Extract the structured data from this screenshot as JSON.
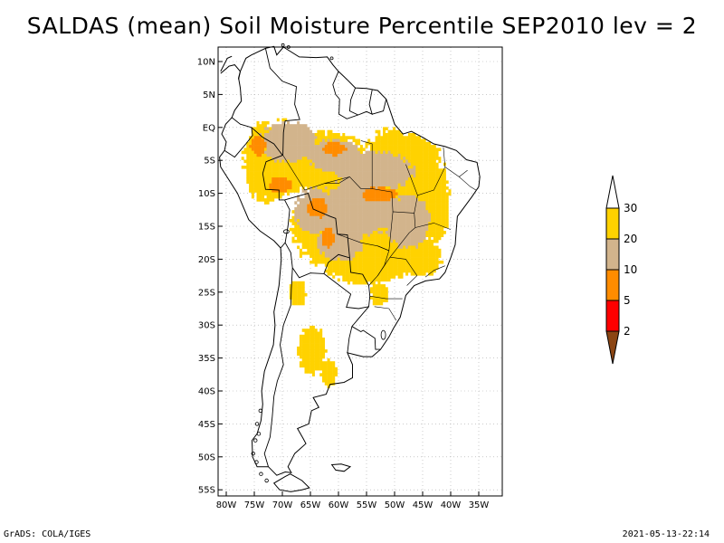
{
  "title": "SALDAS (mean) Soil Moisture Percentile SEP2010 lev = 2",
  "footer": {
    "left": "GrADS: COLA/IGES",
    "right": "2021-05-13-22:14"
  },
  "map": {
    "region": "South America",
    "lat_labels": [
      "10N",
      "5N",
      "EQ",
      "5S",
      "10S",
      "15S",
      "20S",
      "25S",
      "30S",
      "35S",
      "40S",
      "45S",
      "50S",
      "55S"
    ],
    "lon_labels": [
      "80W",
      "75W",
      "70W",
      "65W",
      "60W",
      "55W",
      "50W",
      "45W",
      "40W",
      "35W"
    ],
    "lat_range": [
      10.5,
      -56
    ],
    "lon_range": [
      -81,
      -33
    ]
  },
  "legend": {
    "bins": [
      {
        "label": "30",
        "color": "#ffffff"
      },
      {
        "label": "20",
        "color": "#ffd200"
      },
      {
        "label": "10",
        "color": "#d2b48c"
      },
      {
        "label": "5",
        "color": "#ff8c00"
      },
      {
        "label": "2",
        "color": "#ff0000"
      },
      {
        "label": "",
        "color": "#8b4513"
      }
    ]
  },
  "colors": {
    "yellow": "#ffd200",
    "tan": "#d2b48c",
    "orange": "#ff8c00",
    "red": "#ff0000",
    "brown": "#8b4513"
  }
}
